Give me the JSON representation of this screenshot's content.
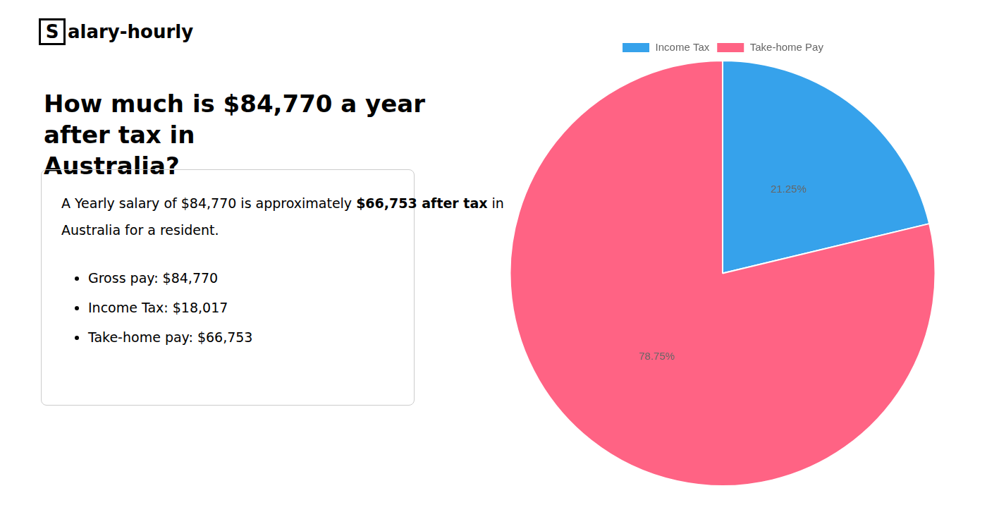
{
  "chart_data": {
    "type": "pie",
    "title": [
      "How much is $84,770 a year after tax in",
      "Australia?"
    ],
    "annotations": [
      "S",
      "alary-hourly",
      "A Yearly salary of $84,770 is approximately ",
      "$66,753 after tax",
      " in",
      "Australia for a resident.",
      "Gross pay: $84,770",
      "Income Tax: $18,017",
      "Take-home pay: $66,753"
    ],
    "categories": [
      "Income Tax",
      "Take-home Pay"
    ],
    "values": [
      21.25,
      78.75
    ],
    "value_labels": [
      "21.25%",
      "78.75%"
    ],
    "data_labels": true,
    "legend": "top"
  }
}
